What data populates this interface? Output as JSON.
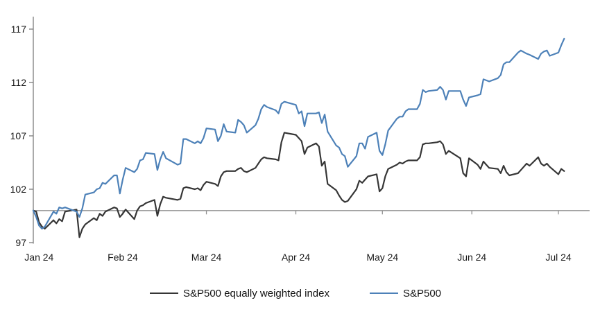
{
  "chart_data": {
    "type": "line",
    "title": "",
    "xlabel": "",
    "ylabel": "",
    "grid": "off",
    "legend_position": "bottom-center",
    "axis_color": "#7d7d7d",
    "baseline_color": "#909090",
    "text_color": "#1a1a1a",
    "y_axis": {
      "ticks": [
        97,
        102,
        107,
        112,
        117
      ],
      "range": [
        97,
        118.2
      ],
      "baseline_value": 100
    },
    "x_axis": {
      "tick_labels": [
        "Jan 24",
        "Feb 24",
        "Mar 24",
        "Apr 24",
        "May 24",
        "Jun 24",
        "Jul 24"
      ],
      "label_days": [
        2,
        31,
        60,
        91,
        121,
        152,
        182
      ],
      "tick_days": [
        31,
        60,
        91,
        121,
        152,
        182
      ],
      "domain_days": [
        0,
        185
      ]
    },
    "series": [
      {
        "name": "S&P500 equally weighted index",
        "color": "#363636",
        "points": [
          [
            0,
            100
          ],
          [
            1,
            99.9
          ],
          [
            2,
            98.9
          ],
          [
            3,
            98.5
          ],
          [
            4,
            98.3
          ],
          [
            7,
            99.1
          ],
          [
            8,
            98.8
          ],
          [
            9,
            99.2
          ],
          [
            10,
            99.0
          ],
          [
            11,
            99.9
          ],
          [
            15,
            100.1
          ],
          [
            16,
            97.5
          ],
          [
            17,
            98.3
          ],
          [
            18,
            98.7
          ],
          [
            21,
            99.3
          ],
          [
            22,
            99.1
          ],
          [
            23,
            99.7
          ],
          [
            24,
            99.5
          ],
          [
            25,
            99.9
          ],
          [
            28,
            100.3
          ],
          [
            29,
            100.2
          ],
          [
            30,
            99.4
          ],
          [
            31,
            99.7
          ],
          [
            32,
            100.1
          ],
          [
            35,
            99.2
          ],
          [
            36,
            100.0
          ],
          [
            37,
            100.4
          ],
          [
            38,
            100.5
          ],
          [
            39,
            100.7
          ],
          [
            42,
            101.0
          ],
          [
            43,
            99.5
          ],
          [
            44,
            100.6
          ],
          [
            45,
            101.3
          ],
          [
            46,
            101.2
          ],
          [
            50,
            101.0
          ],
          [
            51,
            101.1
          ],
          [
            52,
            102.1
          ],
          [
            53,
            102.2
          ],
          [
            56,
            102.0
          ],
          [
            57,
            102.1
          ],
          [
            58,
            101.9
          ],
          [
            59,
            102.4
          ],
          [
            60,
            102.7
          ],
          [
            63,
            102.5
          ],
          [
            64,
            102.3
          ],
          [
            65,
            103.2
          ],
          [
            66,
            103.6
          ],
          [
            67,
            103.7
          ],
          [
            70,
            103.7
          ],
          [
            71,
            103.9
          ],
          [
            72,
            104.0
          ],
          [
            73,
            103.7
          ],
          [
            74,
            103.6
          ],
          [
            77,
            104.0
          ],
          [
            78,
            104.4
          ],
          [
            79,
            104.8
          ],
          [
            80,
            105.0
          ],
          [
            81,
            104.9
          ],
          [
            84,
            104.8
          ],
          [
            85,
            104.7
          ],
          [
            86,
            106.4
          ],
          [
            87,
            107.3
          ],
          [
            91,
            107.1
          ],
          [
            92,
            106.8
          ],
          [
            93,
            106.5
          ],
          [
            94,
            105.3
          ],
          [
            95,
            105.9
          ],
          [
            98,
            106.3
          ],
          [
            99,
            106.0
          ],
          [
            100,
            104.2
          ],
          [
            101,
            104.6
          ],
          [
            102,
            102.5
          ],
          [
            105,
            101.9
          ],
          [
            106,
            101.4
          ],
          [
            107,
            101.0
          ],
          [
            108,
            100.8
          ],
          [
            109,
            100.9
          ],
          [
            112,
            102.0
          ],
          [
            113,
            102.8
          ],
          [
            114,
            102.6
          ],
          [
            115,
            102.9
          ],
          [
            116,
            103.2
          ],
          [
            119,
            103.4
          ],
          [
            120,
            101.8
          ],
          [
            121,
            102.1
          ],
          [
            122,
            103.2
          ],
          [
            123,
            103.9
          ],
          [
            126,
            104.3
          ],
          [
            127,
            104.5
          ],
          [
            128,
            104.4
          ],
          [
            129,
            104.6
          ],
          [
            130,
            104.7
          ],
          [
            133,
            104.7
          ],
          [
            134,
            105.0
          ],
          [
            135,
            106.2
          ],
          [
            136,
            106.3
          ],
          [
            137,
            106.3
          ],
          [
            140,
            106.4
          ],
          [
            141,
            106.5
          ],
          [
            142,
            106.2
          ],
          [
            143,
            105.3
          ],
          [
            144,
            105.6
          ],
          [
            148,
            104.9
          ],
          [
            149,
            103.5
          ],
          [
            150,
            103.2
          ],
          [
            151,
            104.9
          ],
          [
            154,
            104.3
          ],
          [
            155,
            103.9
          ],
          [
            156,
            104.6
          ],
          [
            157,
            104.3
          ],
          [
            158,
            104.0
          ],
          [
            161,
            103.9
          ],
          [
            162,
            103.5
          ],
          [
            163,
            104.2
          ],
          [
            164,
            103.6
          ],
          [
            165,
            103.3
          ],
          [
            168,
            103.5
          ],
          [
            169,
            103.8
          ],
          [
            171,
            104.4
          ],
          [
            172,
            104.2
          ],
          [
            175,
            105.0
          ],
          [
            176,
            104.4
          ],
          [
            177,
            104.2
          ],
          [
            178,
            104.4
          ],
          [
            179,
            104.1
          ],
          [
            182,
            103.4
          ],
          [
            183,
            103.9
          ],
          [
            184,
            103.7
          ]
        ]
      },
      {
        "name": "S&P500",
        "color": "#4d81b8",
        "points": [
          [
            0,
            100
          ],
          [
            1,
            99.4
          ],
          [
            2,
            98.6
          ],
          [
            3,
            98.3
          ],
          [
            4,
            98.5
          ],
          [
            7,
            99.9
          ],
          [
            8,
            99.7
          ],
          [
            9,
            100.3
          ],
          [
            10,
            100.2
          ],
          [
            11,
            100.3
          ],
          [
            15,
            99.9
          ],
          [
            16,
            99.4
          ],
          [
            17,
            100.2
          ],
          [
            18,
            101.5
          ],
          [
            21,
            101.7
          ],
          [
            22,
            102.0
          ],
          [
            23,
            102.1
          ],
          [
            24,
            102.6
          ],
          [
            25,
            102.5
          ],
          [
            28,
            103.3
          ],
          [
            29,
            103.3
          ],
          [
            30,
            101.6
          ],
          [
            31,
            102.9
          ],
          [
            32,
            104.0
          ],
          [
            35,
            103.6
          ],
          [
            36,
            103.9
          ],
          [
            37,
            104.7
          ],
          [
            38,
            104.8
          ],
          [
            39,
            105.4
          ],
          [
            42,
            105.3
          ],
          [
            43,
            103.8
          ],
          [
            44,
            104.8
          ],
          [
            45,
            105.5
          ],
          [
            46,
            104.9
          ],
          [
            50,
            104.3
          ],
          [
            51,
            104.4
          ],
          [
            52,
            106.7
          ],
          [
            53,
            106.7
          ],
          [
            56,
            106.3
          ],
          [
            57,
            106.5
          ],
          [
            58,
            106.3
          ],
          [
            59,
            106.8
          ],
          [
            60,
            107.7
          ],
          [
            63,
            107.6
          ],
          [
            64,
            106.5
          ],
          [
            65,
            107.0
          ],
          [
            66,
            108.1
          ],
          [
            67,
            107.4
          ],
          [
            70,
            107.3
          ],
          [
            71,
            108.5
          ],
          [
            72,
            108.3
          ],
          [
            73,
            108.0
          ],
          [
            74,
            107.3
          ],
          [
            77,
            108.0
          ],
          [
            78,
            108.6
          ],
          [
            79,
            109.5
          ],
          [
            80,
            109.9
          ],
          [
            81,
            109.7
          ],
          [
            84,
            109.4
          ],
          [
            85,
            109.1
          ],
          [
            86,
            110.0
          ],
          [
            87,
            110.2
          ],
          [
            91,
            109.9
          ],
          [
            92,
            109.1
          ],
          [
            93,
            109.3
          ],
          [
            94,
            107.9
          ],
          [
            95,
            109.1
          ],
          [
            98,
            109.1
          ],
          [
            99,
            109.2
          ],
          [
            100,
            108.2
          ],
          [
            101,
            109.0
          ],
          [
            102,
            107.4
          ],
          [
            105,
            106.1
          ],
          [
            106,
            105.9
          ],
          [
            107,
            105.3
          ],
          [
            108,
            105.1
          ],
          [
            109,
            104.1
          ],
          [
            112,
            105.1
          ],
          [
            113,
            106.3
          ],
          [
            114,
            106.3
          ],
          [
            115,
            105.8
          ],
          [
            116,
            106.9
          ],
          [
            119,
            107.3
          ],
          [
            120,
            105.6
          ],
          [
            121,
            105.2
          ],
          [
            122,
            106.2
          ],
          [
            123,
            107.5
          ],
          [
            126,
            108.6
          ],
          [
            127,
            108.8
          ],
          [
            128,
            108.8
          ],
          [
            129,
            109.3
          ],
          [
            130,
            109.5
          ],
          [
            133,
            109.5
          ],
          [
            134,
            110.0
          ],
          [
            135,
            111.3
          ],
          [
            136,
            111.1
          ],
          [
            137,
            111.2
          ],
          [
            140,
            111.3
          ],
          [
            141,
            111.6
          ],
          [
            142,
            111.3
          ],
          [
            143,
            110.4
          ],
          [
            144,
            111.2
          ],
          [
            148,
            111.2
          ],
          [
            149,
            110.4
          ],
          [
            150,
            109.8
          ],
          [
            151,
            110.6
          ],
          [
            154,
            110.8
          ],
          [
            155,
            110.9
          ],
          [
            156,
            112.3
          ],
          [
            157,
            112.2
          ],
          [
            158,
            112.1
          ],
          [
            161,
            112.4
          ],
          [
            162,
            112.7
          ],
          [
            163,
            113.7
          ],
          [
            164,
            113.9
          ],
          [
            165,
            113.9
          ],
          [
            168,
            114.8
          ],
          [
            169,
            115.0
          ],
          [
            171,
            114.7
          ],
          [
            172,
            114.6
          ],
          [
            175,
            114.2
          ],
          [
            176,
            114.7
          ],
          [
            177,
            114.9
          ],
          [
            178,
            115.0
          ],
          [
            179,
            114.5
          ],
          [
            182,
            114.8
          ],
          [
            183,
            115.5
          ],
          [
            184,
            116.1
          ]
        ]
      }
    ]
  }
}
